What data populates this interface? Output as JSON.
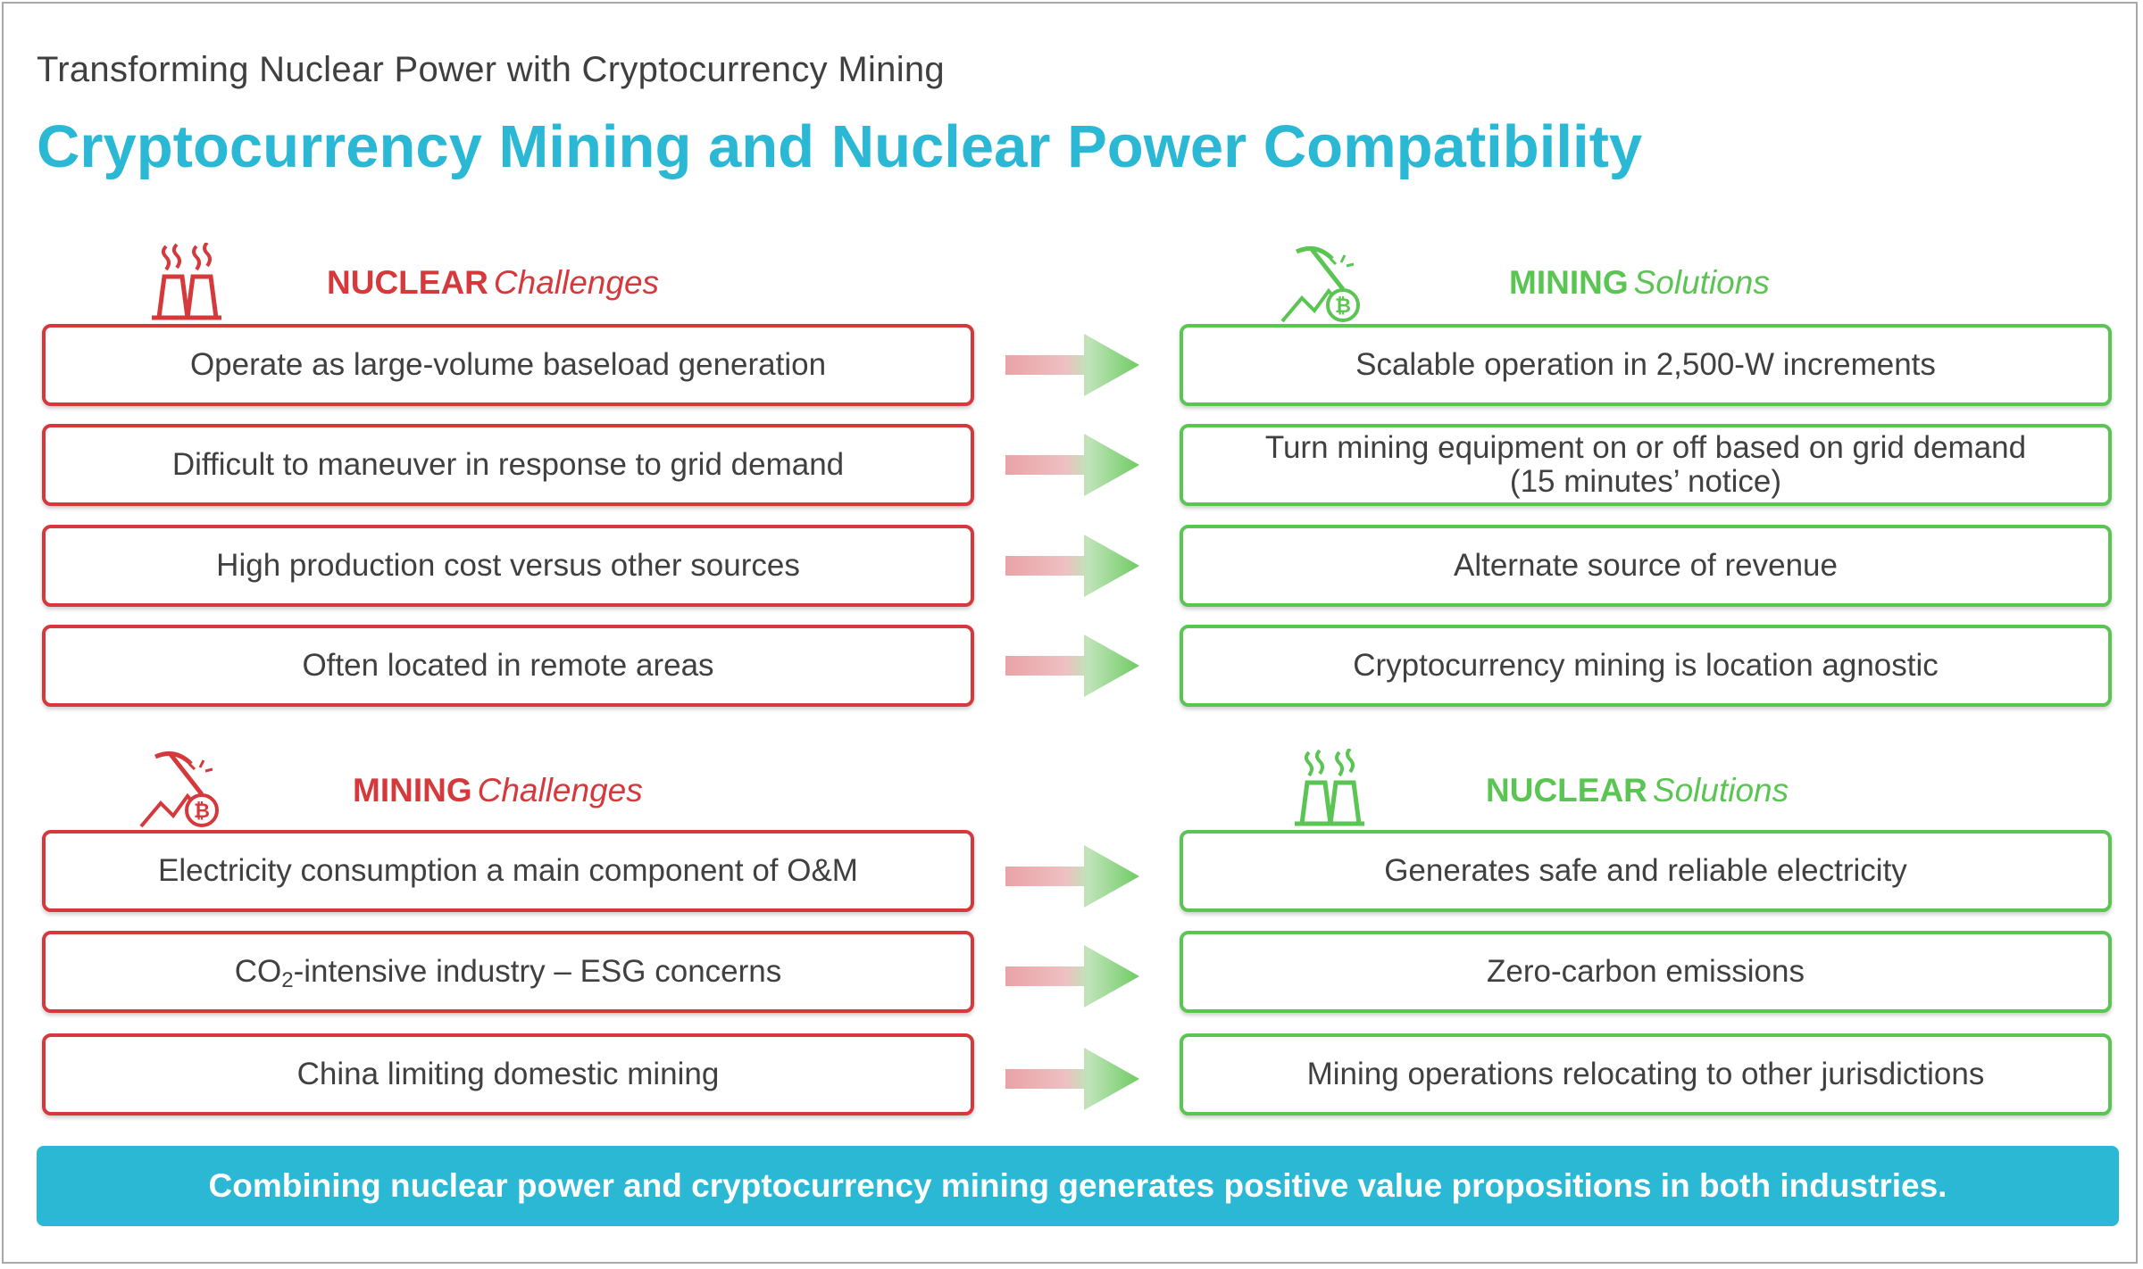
{
  "subtitle": "Transforming Nuclear Power with Cryptocurrency Mining",
  "title": "Cryptocurrency Mining and Nuclear Power Compatibility",
  "colors": {
    "accent": "#2ab8d4",
    "challenge": "#d6393c",
    "solution": "#5ac552"
  },
  "section1": {
    "left_header": {
      "strong": "NUCLEAR",
      "em": "Challenges",
      "icon": "nuclear-plant-icon"
    },
    "right_header": {
      "strong": "MINING",
      "em": "Solutions",
      "icon": "bitcoin-mining-icon"
    },
    "rows": [
      {
        "challenge": "Operate as large-volume baseload generation",
        "solution": "Scalable operation in 2,500-W increments"
      },
      {
        "challenge": "Difficult to maneuver in response to grid demand",
        "solution": "Turn mining equipment on or off based on grid demand\n(15 minutes’ notice)"
      },
      {
        "challenge": "High production cost versus other sources",
        "solution": "Alternate source of revenue"
      },
      {
        "challenge": "Often located in remote areas",
        "solution": "Cryptocurrency mining is location agnostic"
      }
    ]
  },
  "section2": {
    "left_header": {
      "strong": "MINING",
      "em": "Challenges",
      "icon": "bitcoin-mining-icon"
    },
    "right_header": {
      "strong": "NUCLEAR",
      "em": "Solutions",
      "icon": "nuclear-plant-icon"
    },
    "rows": [
      {
        "challenge": "Electricity consumption a main component of O&M",
        "solution": "Generates safe and reliable electricity"
      },
      {
        "challenge_pre": "CO",
        "challenge_sub": "2",
        "challenge_post": "-intensive industry – ESG concerns",
        "solution": "Zero-carbon emissions"
      },
      {
        "challenge": "China limiting domestic mining",
        "solution": "Mining operations relocating to other jurisdictions"
      }
    ]
  },
  "banner": "Combining nuclear power and cryptocurrency mining generates positive value propositions in both industries."
}
